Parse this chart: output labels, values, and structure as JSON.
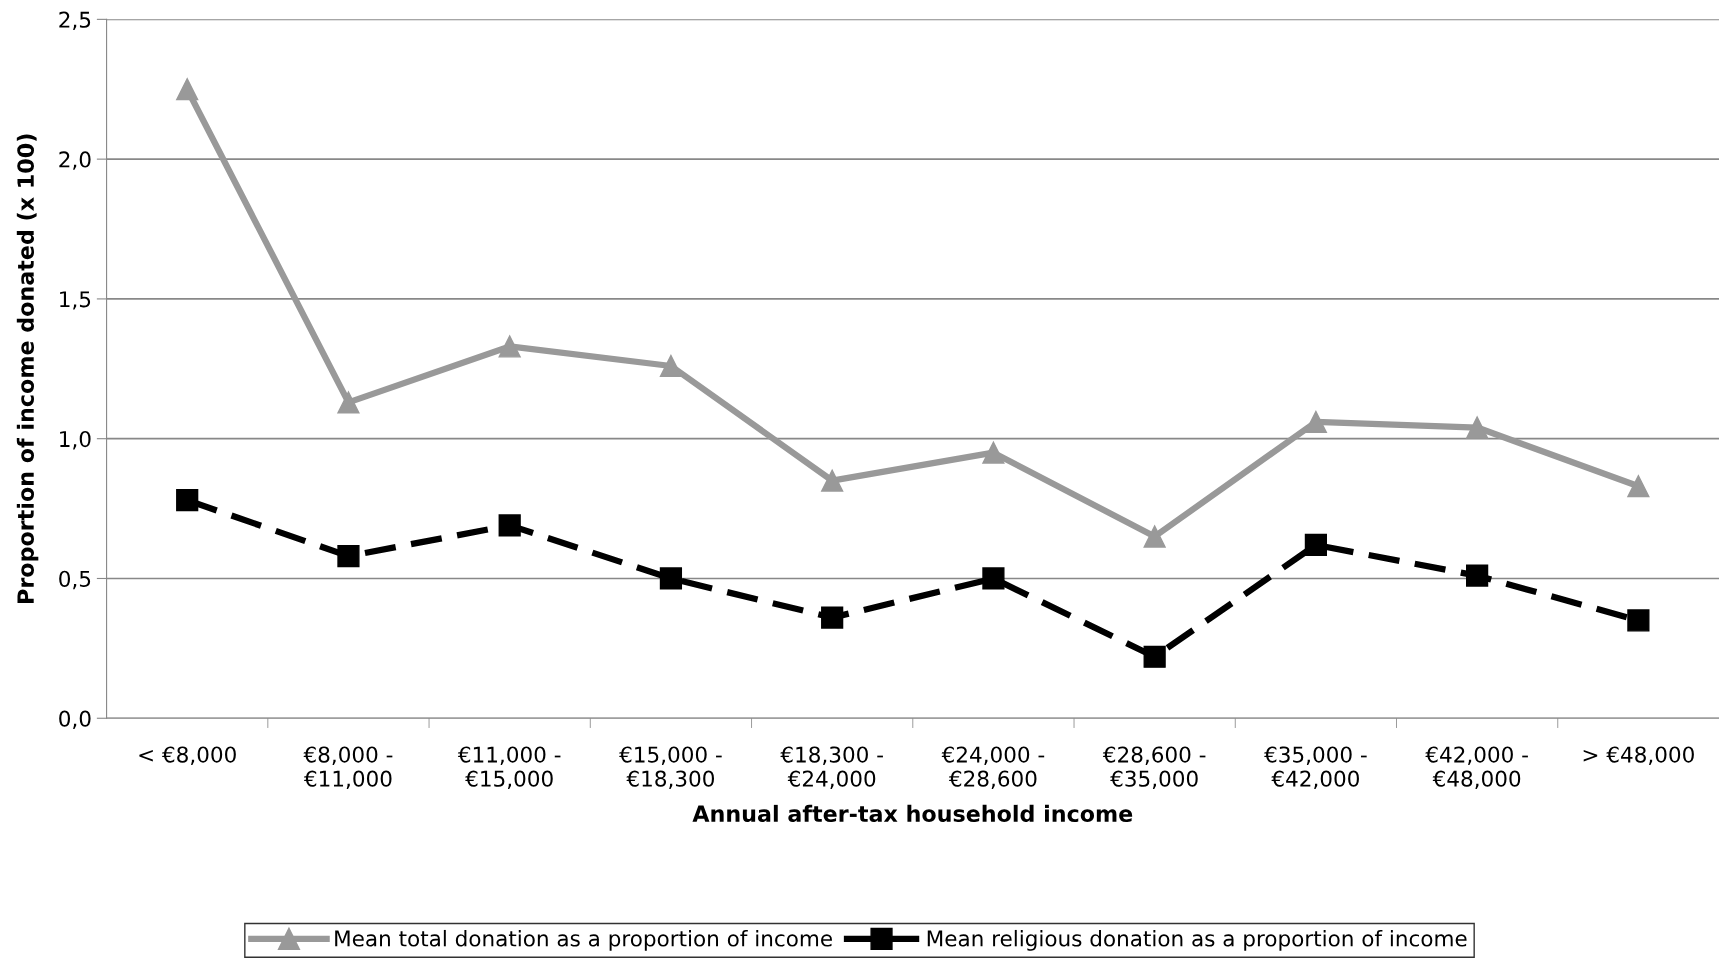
{
  "chart_data": {
    "type": "line",
    "xlabel": "Annual after-tax household income",
    "ylabel": "Proportion of income donated (x 100)",
    "categories": [
      "< €8,000",
      "€8,000 -\n€11,000",
      "€11,000 -\n€15,000",
      "€15,000 -\n€18,300",
      "€18,300 -\n€24,000",
      "€24,000 -\n€28,600",
      "€28,600 -\n€35,000",
      "€35,000 -\n€42,000",
      "€42,000 -\n€48,000",
      "> €48,000"
    ],
    "series": [
      {
        "name": "Mean total donation as a proportion of income",
        "color": "#999999",
        "marker": "triangle",
        "line_style": "solid",
        "values": [
          2.25,
          1.13,
          1.33,
          1.26,
          0.85,
          0.95,
          0.65,
          1.06,
          1.04,
          0.83
        ]
      },
      {
        "name": "Mean religious donation as a proportion of income",
        "color": "#000000",
        "marker": "square",
        "line_style": "dashed",
        "values": [
          0.78,
          0.58,
          0.69,
          0.5,
          0.36,
          0.5,
          0.22,
          0.62,
          0.51,
          0.35
        ]
      }
    ],
    "ylim": [
      0,
      2.5
    ],
    "yticks": [
      {
        "value": 0,
        "label": "0,0"
      },
      {
        "value": 0.5,
        "label": "0,5"
      },
      {
        "value": 1.0,
        "label": "1,0"
      },
      {
        "value": 1.5,
        "label": "1,5"
      },
      {
        "value": 2.0,
        "label": "2,0"
      },
      {
        "value": 2.5,
        "label": "2,5"
      }
    ],
    "grid": "y",
    "legend": "bottom"
  }
}
